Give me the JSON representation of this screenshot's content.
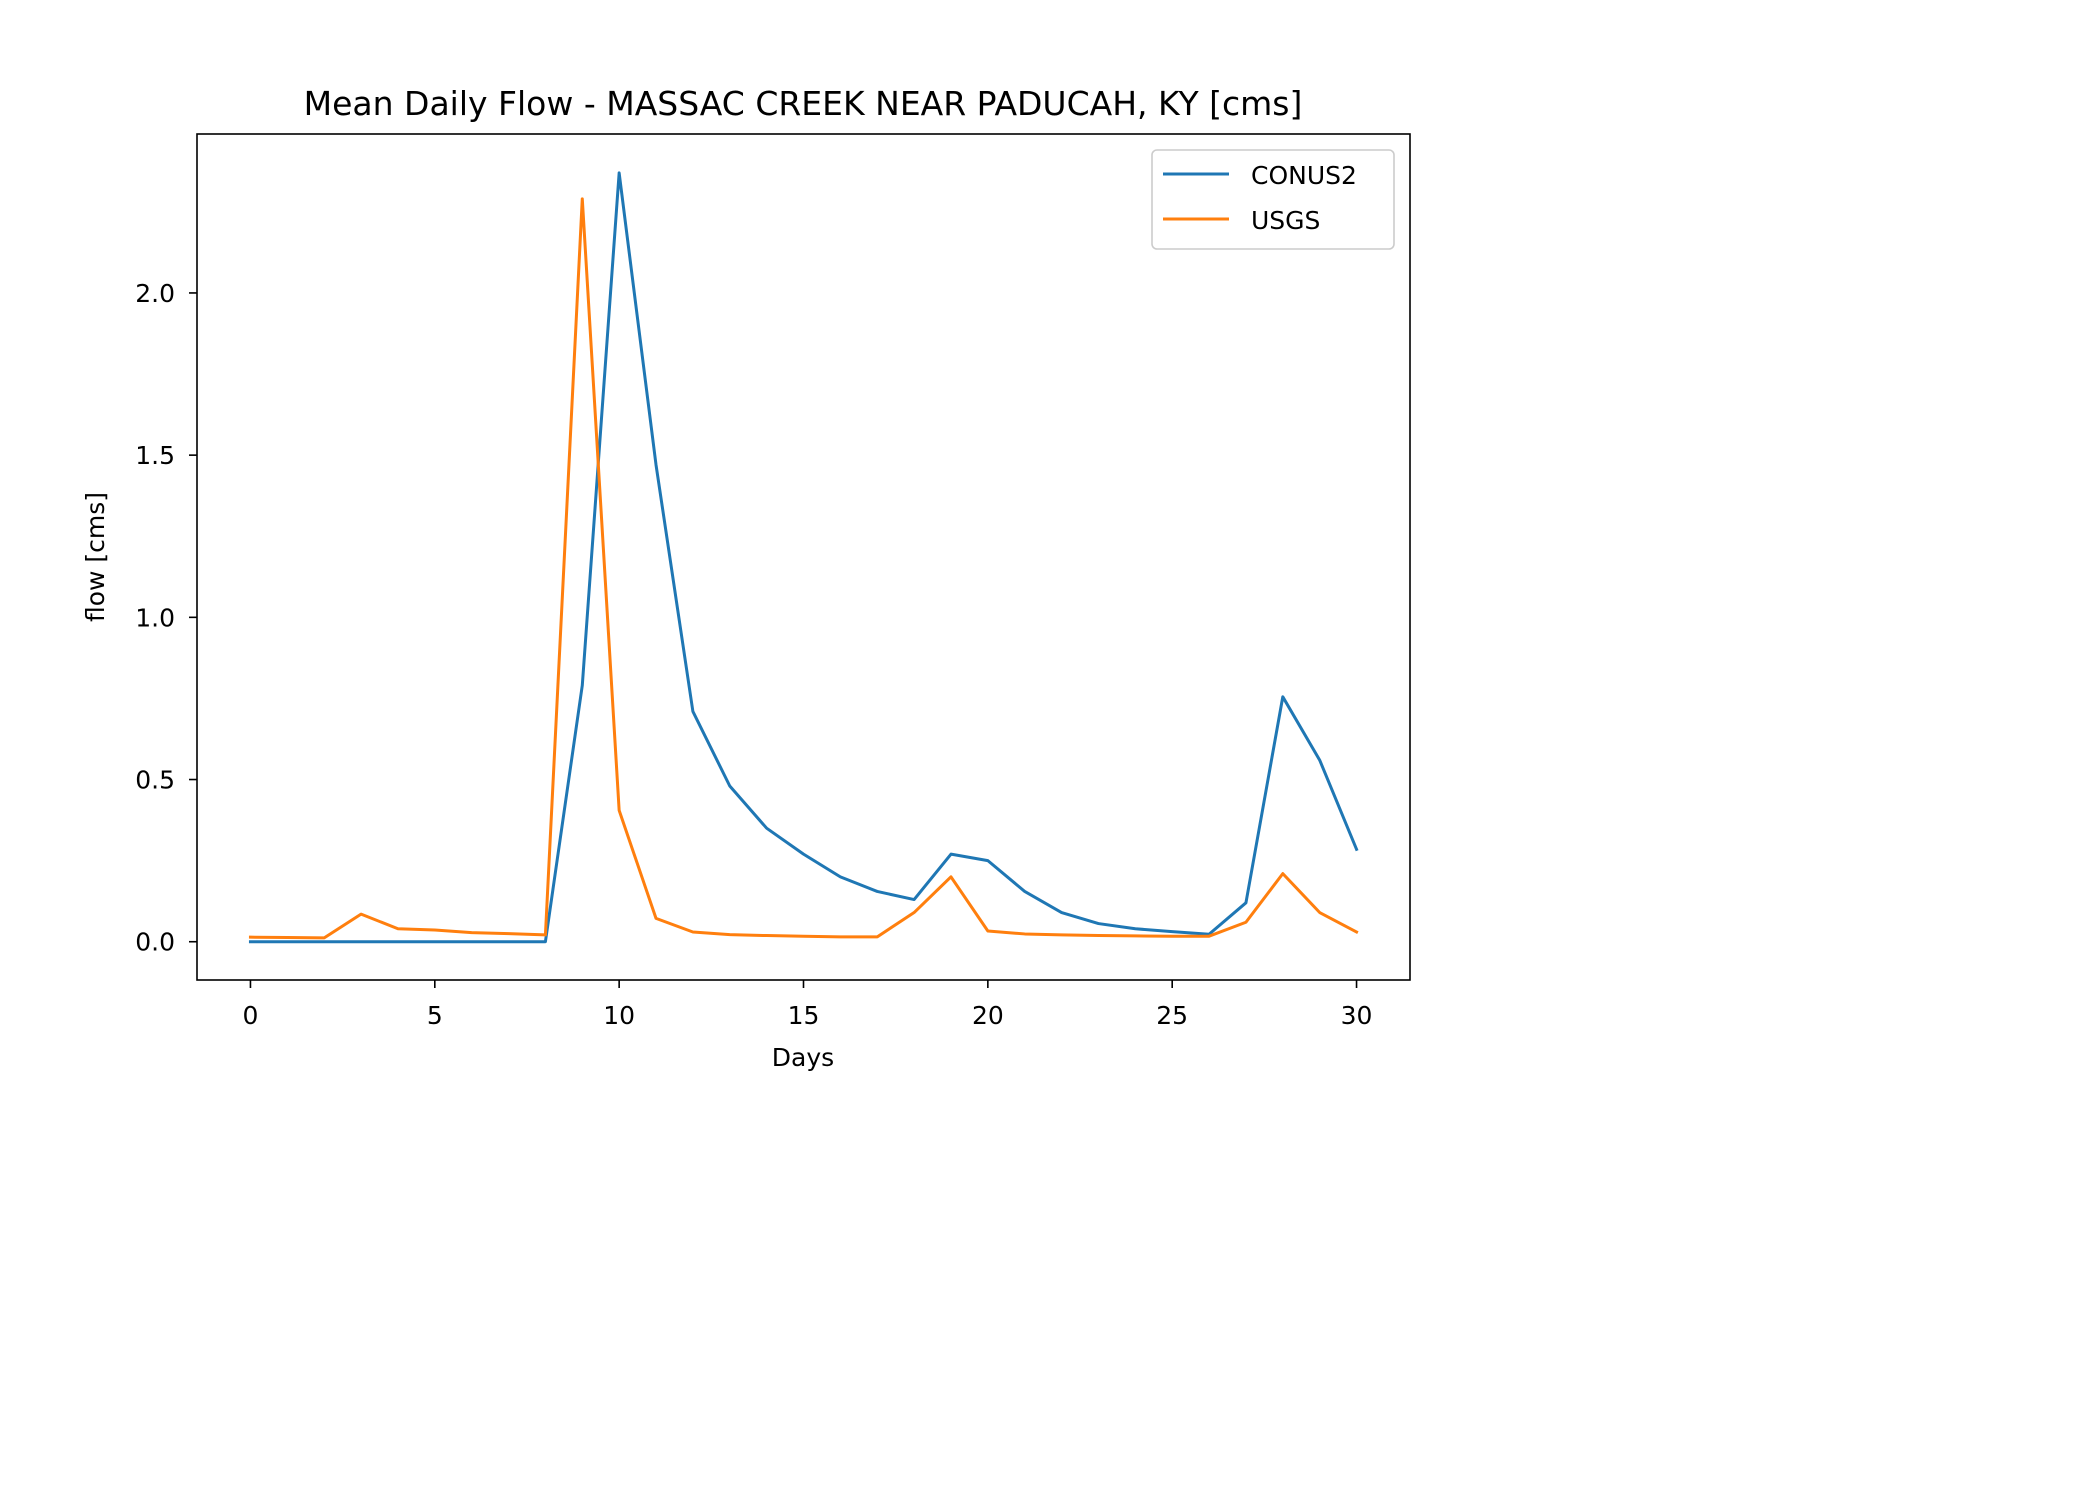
{
  "chart_data": {
    "type": "line",
    "title": "Mean Daily Flow - MASSAC CREEK NEAR PADUCAH, KY [cms]",
    "xlabel": "Days",
    "ylabel": "flow [cms]",
    "xlim": [
      -1.45,
      31.45
    ],
    "ylim": [
      -0.118,
      2.49
    ],
    "xticks": [
      0,
      5,
      10,
      15,
      20,
      25,
      30
    ],
    "xtick_labels": [
      "0",
      "5",
      "10",
      "15",
      "20",
      "25",
      "30"
    ],
    "yticks": [
      0.0,
      0.5,
      1.0,
      1.5,
      2.0
    ],
    "ytick_labels": [
      "0.0",
      "0.5",
      "1.0",
      "1.5",
      "2.0"
    ],
    "grid": false,
    "legend_position": "top-right",
    "x": [
      0,
      1,
      2,
      3,
      4,
      5,
      6,
      7,
      8,
      9,
      10,
      11,
      12,
      13,
      14,
      15,
      16,
      17,
      18,
      19,
      20,
      21,
      22,
      23,
      24,
      25,
      26,
      27,
      28,
      29,
      30
    ],
    "series": [
      {
        "name": "CONUS2",
        "color": "#1f77b4",
        "values": [
          0.0,
          0.0,
          0.0,
          0.0,
          0.0,
          0.0,
          0.0,
          0.0,
          0.0,
          0.79,
          2.37,
          1.47,
          0.71,
          0.48,
          0.35,
          0.27,
          0.2,
          0.155,
          0.13,
          0.27,
          0.25,
          0.155,
          0.09,
          0.056,
          0.04,
          0.031,
          0.023,
          0.12,
          0.755,
          0.56,
          0.285
        ]
      },
      {
        "name": "USGS",
        "color": "#ff7f0e",
        "values": [
          0.014,
          0.013,
          0.012,
          0.085,
          0.04,
          0.036,
          0.028,
          0.025,
          0.021,
          2.29,
          0.405,
          0.072,
          0.03,
          0.022,
          0.019,
          0.017,
          0.015,
          0.015,
          0.09,
          0.2,
          0.033,
          0.024,
          0.021,
          0.019,
          0.018,
          0.017,
          0.017,
          0.06,
          0.21,
          0.09,
          0.03
        ]
      }
    ]
  }
}
